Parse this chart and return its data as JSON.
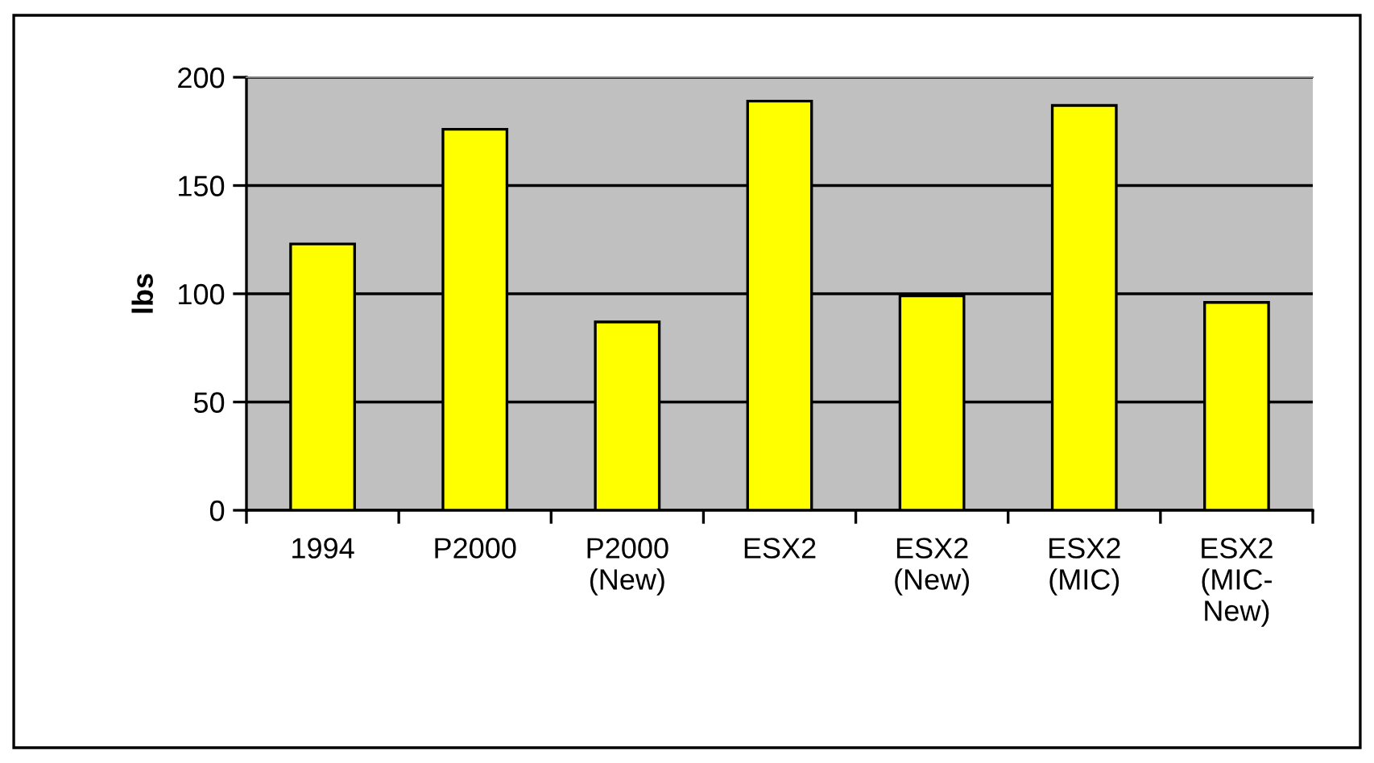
{
  "chart_data": {
    "type": "bar",
    "ylabel": "lbs",
    "categories": [
      "1994",
      "P2000",
      "P2000\n(New)",
      "ESX2",
      "ESX2\n(New)",
      "ESX2\n(MIC)",
      "ESX2\n(MIC-\nNew)"
    ],
    "values": [
      123,
      176,
      87,
      189,
      99,
      187,
      96
    ],
    "color": "#ffff00",
    "ylim": [
      0,
      200
    ],
    "yticks": [
      0,
      50,
      100,
      150,
      200
    ],
    "grid": "y"
  }
}
